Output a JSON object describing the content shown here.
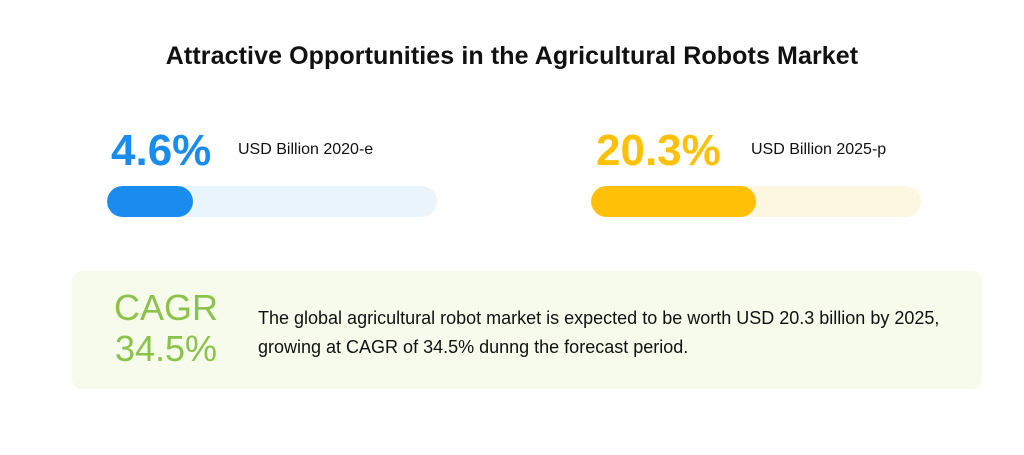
{
  "title": "Attractive Opportunities in the Agricultural Robots Market",
  "chart_data": {
    "type": "bar",
    "title": "Attractive Opportunities in the Agricultural Robots Market",
    "categories": [
      "USD Billion 2020-e",
      "USD Billion 2025-p"
    ],
    "values": [
      4.6,
      20.3
    ],
    "value_labels": [
      "4.6%",
      "20.3%"
    ],
    "fill_fraction": [
      0.26,
      0.5
    ]
  },
  "stats": [
    {
      "value": "4.6%",
      "label": "USD Billion 2020-e",
      "color": "#1a8cf0",
      "track_color": "#e9f4fc"
    },
    {
      "value": "20.3%",
      "label": "USD Billion 2025-p",
      "color": "#ffc107",
      "track_color": "#fdf6e1"
    }
  ],
  "cagr": {
    "line1": "CAGR",
    "line2": "34.5%",
    "color": "#8bc34a",
    "description": "The global agricultural robot market is expected to be worth USD 20.3 billion by 2025, growing at CAGR of 34.5% dunng the forecast period."
  }
}
